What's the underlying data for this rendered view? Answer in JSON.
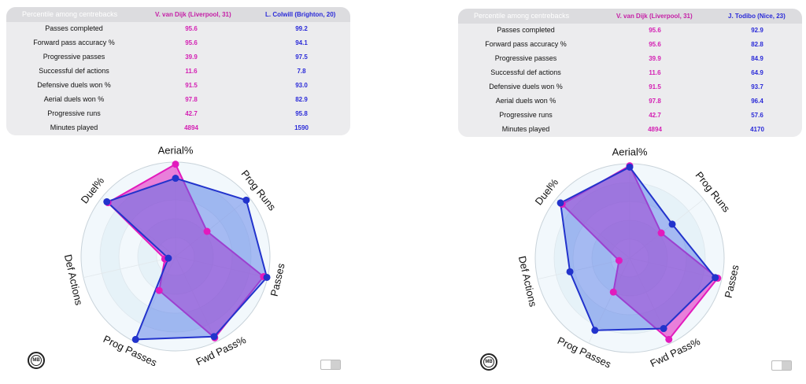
{
  "colors": {
    "player1": "#e21bbd",
    "player2": "#2233cc",
    "header_text": "#ffffff"
  },
  "header_label": "Percentile among centrebacks",
  "metric_labels": [
    "Passes completed",
    "Forward pass accuracy %",
    "Progressive passes",
    "Successful def actions",
    "Defensive duels won %",
    "Aerial duels won %",
    "Progressive runs",
    "Minutes played"
  ],
  "radar_axes": [
    "Aerial%",
    "Prog Runs",
    "Passes",
    "Fwd Pass%",
    "Prog Passes",
    "Def Actions",
    "Duel%"
  ],
  "radar_scale_max": 100,
  "logo_text": "MB",
  "comparisons": [
    {
      "player1": "V. van Dijk (Liverpool, 31)",
      "player2": "L. Colwill (Brighton, 20)",
      "player1_values": [
        "95.6",
        "95.6",
        "39.9",
        "11.6",
        "91.5",
        "97.8",
        "42.7",
        "4894"
      ],
      "player2_values": [
        "99.2",
        "94.1",
        "97.5",
        "7.8",
        "93.0",
        "82.9",
        "95.8",
        "1590"
      ]
    },
    {
      "player1": "V. van Dijk (Liverpool, 31)",
      "player2": "J. Todibo (Nice, 23)",
      "player1_values": [
        "95.6",
        "95.6",
        "39.9",
        "11.6",
        "91.5",
        "97.8",
        "42.7",
        "4894"
      ],
      "player2_values": [
        "92.9",
        "82.8",
        "84.9",
        "64.9",
        "93.7",
        "96.4",
        "57.6",
        "4170"
      ]
    }
  ],
  "chart_data": [
    {
      "type": "radar",
      "categories": [
        "Aerial%",
        "Prog Runs",
        "Passes",
        "Fwd Pass%",
        "Prog Passes",
        "Def Actions",
        "Duel%"
      ],
      "series": [
        {
          "name": "V. van Dijk (Liverpool, 31)",
          "values": [
            97.8,
            42.7,
            95.6,
            95.6,
            39.9,
            11.6,
            91.5
          ]
        },
        {
          "name": "L. Colwill (Brighton, 20)",
          "values": [
            82.9,
            95.8,
            99.2,
            94.1,
            97.5,
            7.8,
            93.0
          ]
        }
      ],
      "rlim": [
        0,
        100
      ]
    },
    {
      "type": "radar",
      "categories": [
        "Aerial%",
        "Prog Runs",
        "Passes",
        "Fwd Pass%",
        "Prog Passes",
        "Def Actions",
        "Duel%"
      ],
      "series": [
        {
          "name": "V. van Dijk (Liverpool, 31)",
          "values": [
            97.8,
            42.7,
            95.6,
            95.6,
            39.9,
            11.6,
            91.5
          ]
        },
        {
          "name": "J. Todibo (Nice, 23)",
          "values": [
            96.4,
            57.6,
            92.9,
            82.8,
            84.9,
            64.9,
            93.7
          ]
        }
      ],
      "rlim": [
        0,
        100
      ]
    }
  ]
}
